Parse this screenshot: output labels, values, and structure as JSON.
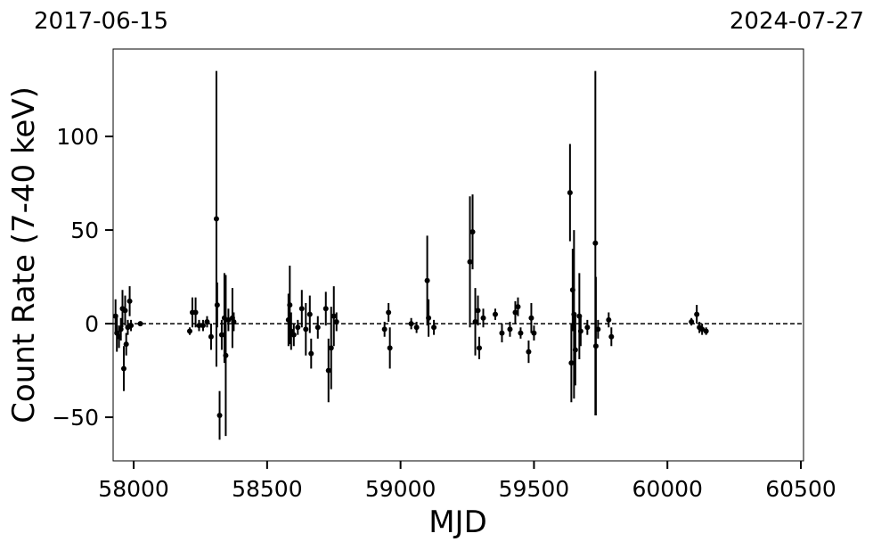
{
  "chart_data": {
    "type": "errorbar",
    "annotations": [
      "2017-06-15",
      "2024-07-27"
    ],
    "xlabel": "MJD",
    "ylabel": "Count Rate (7-40 keV)",
    "color": "#000000",
    "reference_line": 0,
    "xlim": [
      57923,
      60510
    ],
    "ylim": [
      -73.3,
      146.7
    ],
    "xticks": [
      58000,
      58500,
      59000,
      59500,
      60000,
      60500
    ],
    "yticks": [
      {
        "value": -50,
        "label": "−50"
      },
      0,
      50,
      100
    ],
    "x": [
      57932,
      57937,
      57945,
      57952,
      57958,
      57963,
      57968,
      57972,
      57978,
      57985,
      57990,
      58025,
      58210,
      58220,
      58232,
      58245,
      58260,
      58275,
      58290,
      58310,
      58313,
      58322,
      58330,
      58340,
      58345,
      58355,
      58370,
      58375,
      58580,
      58585,
      58590,
      58600,
      58615,
      58630,
      58645,
      58660,
      58665,
      58690,
      58720,
      58730,
      58740,
      58750,
      58760,
      58940,
      58955,
      58960,
      59040,
      59060,
      59100,
      59105,
      59125,
      59260,
      59270,
      59280,
      59290,
      59295,
      59310,
      59355,
      59380,
      59410,
      59430,
      59440,
      59450,
      59480,
      59490,
      59500,
      59635,
      59640,
      59645,
      59650,
      59655,
      59670,
      59675,
      59700,
      59730,
      59732,
      59740,
      59780,
      59790,
      60090,
      60110,
      60120,
      60130,
      60145
    ],
    "values": [
      4,
      -5,
      -7,
      -3,
      8,
      -24,
      7,
      -11,
      -2,
      12,
      -1,
      0,
      -4,
      6,
      6,
      -1,
      -1,
      1,
      -7,
      56,
      10,
      -49,
      -6,
      3,
      -17,
      2,
      3,
      1,
      2,
      10,
      -4,
      -6,
      -2,
      8,
      -3,
      5,
      -16,
      -2,
      8,
      -25,
      -13,
      4,
      1,
      -3,
      6,
      -13,
      0,
      -2,
      23,
      3,
      -2,
      33,
      49,
      1,
      7,
      -13,
      3,
      5,
      -5,
      -3,
      6,
      9,
      -5,
      -15,
      3,
      -5,
      70,
      -21,
      18,
      5,
      -14,
      4,
      -4,
      -2,
      43,
      -12,
      -3,
      2,
      -7,
      1,
      5,
      -2,
      -3,
      -4
    ],
    "errors": [
      9,
      10,
      6,
      6,
      10,
      12,
      8,
      6,
      4,
      8,
      3,
      1,
      2,
      8,
      8,
      3,
      3,
      3,
      7,
      79,
      12,
      13,
      8,
      24,
      43,
      6,
      16,
      5,
      14,
      21,
      10,
      6,
      4,
      10,
      14,
      10,
      8,
      6,
      9,
      17,
      22,
      16,
      5,
      4,
      5,
      11,
      3,
      3,
      24,
      10,
      4,
      35,
      20,
      18,
      8,
      6,
      5,
      3,
      5,
      4,
      6,
      5,
      3,
      6,
      8,
      4,
      26,
      21,
      22,
      45,
      19,
      23,
      8,
      4,
      92,
      37,
      5,
      4,
      5,
      2,
      5,
      3,
      3,
      2
    ]
  }
}
